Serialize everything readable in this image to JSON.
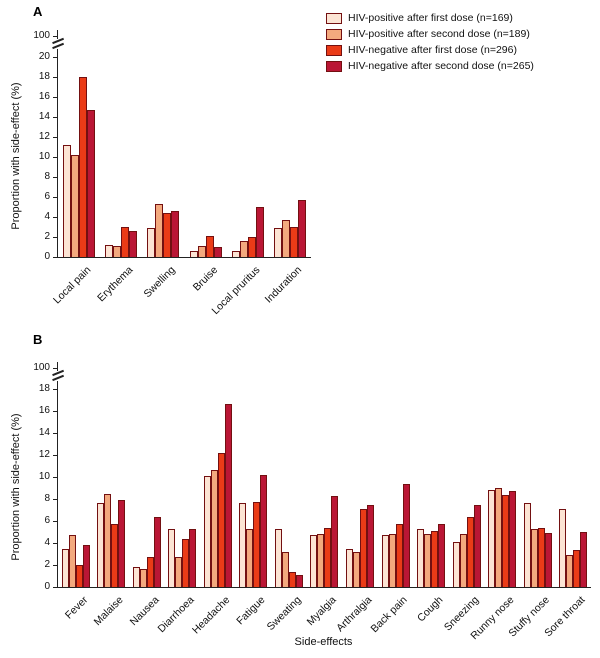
{
  "figure": {
    "panel_a_label": "A",
    "panel_b_label": "B",
    "ylabel": "Proportion with side-effect (%)",
    "xlabel": "Side-effects",
    "axis_color": "#222222",
    "bar_border_color": "#731011"
  },
  "chart_data": [
    {
      "type": "bar",
      "panel": "A",
      "ylabel": "Proportion with side-effect (%)",
      "ylim": [
        0,
        20
      ],
      "tick_step": 2,
      "axis_break_to": 100,
      "grid": false,
      "legend_position": "top-right",
      "categories": [
        "Local pain",
        "Erythema",
        "Swelling",
        "Bruise",
        "Local pruritus",
        "Induration"
      ],
      "series": [
        {
          "name": "HIV-positive after first dose (n=169)",
          "color": "#fce4d4",
          "values": [
            11.2,
            1.2,
            2.9,
            0.6,
            0.6,
            2.9
          ]
        },
        {
          "name": "HIV-positive after second dose (n=189)",
          "color": "#f3a97e",
          "values": [
            10.2,
            1.1,
            5.3,
            1.1,
            1.6,
            3.7
          ]
        },
        {
          "name": "HIV-negative after first dose (n=296)",
          "color": "#ea3b17",
          "values": [
            18.0,
            3.0,
            4.4,
            2.1,
            2.0,
            3.0
          ]
        },
        {
          "name": "HIV-negative after second dose (n=265)",
          "color": "#ba1635",
          "values": [
            14.7,
            2.6,
            4.6,
            1.0,
            5.0,
            5.7
          ]
        }
      ]
    },
    {
      "type": "bar",
      "panel": "B",
      "ylabel": "Proportion with side-effect (%)",
      "xlabel": "Side-effects",
      "ylim": [
        0,
        18
      ],
      "tick_step": 2,
      "axis_break_to": 100,
      "grid": false,
      "categories": [
        "Fever",
        "Malaise",
        "Nausea",
        "Diarrhoea",
        "Headache",
        "Fatigue",
        "Sweating",
        "Myalgia",
        "Arthralgia",
        "Back pain",
        "Cough",
        "Sneezing",
        "Runny nose",
        "Stuffy nose",
        "Sore throat"
      ],
      "series": [
        {
          "name": "HIV-positive after first dose (n=169)",
          "color": "#fce4d4",
          "values": [
            3.5,
            7.6,
            1.8,
            5.3,
            10.1,
            7.6,
            5.3,
            4.7,
            3.5,
            4.7,
            5.3,
            4.1,
            8.8,
            7.6,
            7.1
          ]
        },
        {
          "name": "HIV-positive after second dose (n=189)",
          "color": "#f3a97e",
          "values": [
            4.7,
            8.5,
            1.6,
            2.7,
            10.6,
            5.3,
            3.2,
            4.8,
            3.2,
            4.8,
            4.8,
            4.8,
            9.0,
            5.3,
            2.9
          ]
        },
        {
          "name": "HIV-negative after first dose (n=296)",
          "color": "#ea3b17",
          "values": [
            2.0,
            5.7,
            2.7,
            4.4,
            12.2,
            7.7,
            1.4,
            5.4,
            7.1,
            5.7,
            5.1,
            6.4,
            8.4,
            5.4,
            3.4
          ]
        },
        {
          "name": "HIV-negative after second dose (n=265)",
          "color": "#ba1635",
          "values": [
            3.8,
            7.9,
            6.4,
            5.3,
            16.6,
            10.2,
            1.1,
            8.3,
            7.5,
            9.4,
            5.7,
            7.5,
            8.7,
            4.9,
            5.0
          ]
        }
      ]
    }
  ]
}
